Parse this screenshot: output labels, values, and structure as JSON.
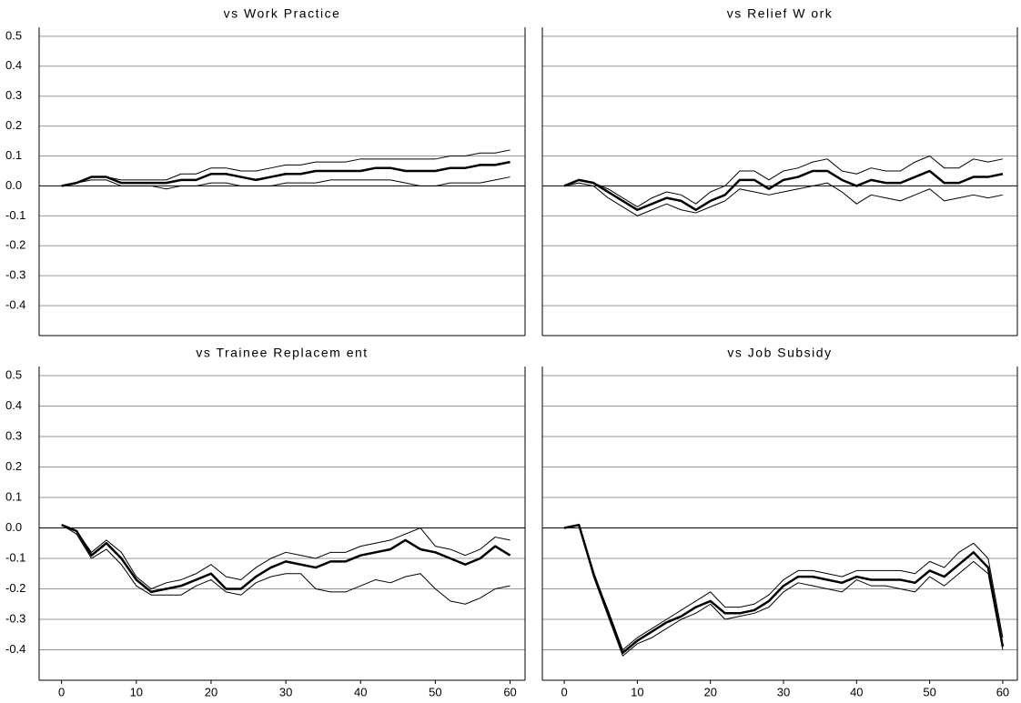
{
  "chart_data": [
    {
      "type": "line",
      "title": "vs Work Practice",
      "x": [
        0,
        2,
        4,
        6,
        8,
        10,
        12,
        14,
        16,
        18,
        20,
        22,
        24,
        26,
        28,
        30,
        32,
        34,
        36,
        38,
        40,
        42,
        44,
        46,
        48,
        50,
        52,
        54,
        56,
        58,
        60
      ],
      "series": [
        {
          "color": "#000000",
          "line_width": 1,
          "values": [
            0,
            0.01,
            0.03,
            0.03,
            0.02,
            0.02,
            0.02,
            0.02,
            0.04,
            0.04,
            0.06,
            0.06,
            0.05,
            0.05,
            0.06,
            0.07,
            0.07,
            0.08,
            0.08,
            0.08,
            0.09,
            0.09,
            0.09,
            0.09,
            0.09,
            0.09,
            0.1,
            0.1,
            0.11,
            0.11,
            0.12
          ]
        },
        {
          "color": "#000000",
          "line_width": 1,
          "values": [
            0,
            0.01,
            0.02,
            0.02,
            0,
            0,
            0,
            -0.01,
            0,
            0,
            0.01,
            0.01,
            0,
            0,
            0,
            0.01,
            0.01,
            0.01,
            0.02,
            0.02,
            0.02,
            0.02,
            0.02,
            0.01,
            0,
            0,
            0.01,
            0.01,
            0.01,
            0.02,
            0.03
          ]
        },
        {
          "color": "#000000",
          "line_width": 2.5,
          "values": [
            0,
            0.01,
            0.03,
            0.03,
            0.01,
            0.01,
            0.01,
            0.01,
            0.02,
            0.02,
            0.04,
            0.04,
            0.03,
            0.02,
            0.03,
            0.04,
            0.04,
            0.05,
            0.05,
            0.05,
            0.05,
            0.06,
            0.06,
            0.05,
            0.05,
            0.05,
            0.06,
            0.06,
            0.07,
            0.07,
            0.08
          ]
        }
      ],
      "xlim": [
        -3,
        62
      ],
      "ylim": [
        -0.5,
        0.53
      ],
      "yticks": [
        -0.4,
        -0.3,
        -0.2,
        -0.1,
        {
          "value": 0,
          "label": "0.0"
        },
        0.1,
        0.2,
        0.3,
        0.4,
        0.5
      ],
      "ytick_labels": true,
      "grid": true,
      "zero_line": true
    },
    {
      "type": "line",
      "title": "vs Relief W ork",
      "x": [
        0,
        2,
        4,
        6,
        8,
        10,
        12,
        14,
        16,
        18,
        20,
        22,
        24,
        26,
        28,
        30,
        32,
        34,
        36,
        38,
        40,
        42,
        44,
        46,
        48,
        50,
        52,
        54,
        56,
        58,
        60
      ],
      "series": [
        {
          "color": "#000000",
          "line_width": 1,
          "values": [
            0,
            0.02,
            0.01,
            -0.01,
            -0.04,
            -0.07,
            -0.04,
            -0.02,
            -0.03,
            -0.06,
            -0.02,
            0,
            0.05,
            0.05,
            0.02,
            0.05,
            0.06,
            0.08,
            0.09,
            0.05,
            0.04,
            0.06,
            0.05,
            0.05,
            0.08,
            0.1,
            0.06,
            0.06,
            0.09,
            0.08,
            0.09
          ]
        },
        {
          "color": "#000000",
          "line_width": 1,
          "values": [
            0,
            0.01,
            0,
            -0.04,
            -0.07,
            -0.1,
            -0.08,
            -0.06,
            -0.08,
            -0.09,
            -0.07,
            -0.05,
            -0.01,
            -0.02,
            -0.03,
            -0.02,
            -0.01,
            0,
            0.01,
            -0.02,
            -0.06,
            -0.03,
            -0.04,
            -0.05,
            -0.03,
            -0.01,
            -0.05,
            -0.04,
            -0.03,
            -0.04,
            -0.03
          ]
        },
        {
          "color": "#000000",
          "line_width": 2.5,
          "values": [
            0,
            0.02,
            0.01,
            -0.02,
            -0.05,
            -0.08,
            -0.06,
            -0.04,
            -0.05,
            -0.08,
            -0.05,
            -0.03,
            0.02,
            0.02,
            -0.01,
            0.02,
            0.03,
            0.05,
            0.05,
            0.02,
            0,
            0.02,
            0.01,
            0.01,
            0.03,
            0.05,
            0.01,
            0.01,
            0.03,
            0.03,
            0.04
          ]
        }
      ],
      "xlim": [
        -3,
        62
      ],
      "ylim": [
        -0.5,
        0.53
      ],
      "yticks": [
        -0.4,
        -0.3,
        -0.2,
        -0.1,
        0,
        0.1,
        0.2,
        0.3,
        0.4,
        0.5
      ],
      "ytick_labels": false,
      "grid": true,
      "zero_line": true
    },
    {
      "type": "line",
      "title": "vs Trainee Replacem ent",
      "x": [
        0,
        2,
        4,
        6,
        8,
        10,
        12,
        14,
        16,
        18,
        20,
        22,
        24,
        26,
        28,
        30,
        32,
        34,
        36,
        38,
        40,
        42,
        44,
        46,
        48,
        50,
        52,
        54,
        56,
        58,
        60
      ],
      "series": [
        {
          "color": "#000000",
          "line_width": 1,
          "values": [
            0.01,
            -0.01,
            -0.08,
            -0.04,
            -0.08,
            -0.16,
            -0.2,
            -0.18,
            -0.17,
            -0.15,
            -0.12,
            -0.16,
            -0.17,
            -0.13,
            -0.1,
            -0.08,
            -0.09,
            -0.1,
            -0.08,
            -0.08,
            -0.06,
            -0.05,
            -0.04,
            -0.02,
            0,
            -0.06,
            -0.07,
            -0.09,
            -0.07,
            -0.03,
            -0.04
          ]
        },
        {
          "color": "#000000",
          "line_width": 1,
          "values": [
            0.01,
            -0.02,
            -0.1,
            -0.07,
            -0.12,
            -0.19,
            -0.22,
            -0.22,
            -0.22,
            -0.19,
            -0.17,
            -0.21,
            -0.22,
            -0.18,
            -0.16,
            -0.15,
            -0.15,
            -0.2,
            -0.21,
            -0.21,
            -0.19,
            -0.17,
            -0.18,
            -0.16,
            -0.15,
            -0.2,
            -0.24,
            -0.25,
            -0.23,
            -0.2,
            -0.19
          ]
        },
        {
          "color": "#000000",
          "line_width": 2.5,
          "values": [
            0.01,
            -0.01,
            -0.09,
            -0.05,
            -0.1,
            -0.17,
            -0.21,
            -0.2,
            -0.19,
            -0.17,
            -0.15,
            -0.2,
            -0.2,
            -0.16,
            -0.13,
            -0.11,
            -0.12,
            -0.13,
            -0.11,
            -0.11,
            -0.09,
            -0.08,
            -0.07,
            -0.04,
            -0.07,
            -0.08,
            -0.1,
            -0.12,
            -0.1,
            -0.06,
            -0.09
          ]
        }
      ],
      "xlim": [
        -3,
        62
      ],
      "ylim": [
        -0.5,
        0.53
      ],
      "xticks": [
        0,
        10,
        20,
        30,
        40,
        50,
        60
      ],
      "yticks": [
        -0.4,
        -0.3,
        -0.2,
        -0.1,
        {
          "value": 0,
          "label": "0.0"
        },
        0.1,
        0.2,
        0.3,
        0.4,
        0.5
      ],
      "ytick_labels": true,
      "grid": true,
      "zero_line": true
    },
    {
      "type": "line",
      "title": "vs Job Subsidy",
      "x": [
        0,
        2,
        4,
        6,
        8,
        10,
        12,
        14,
        16,
        18,
        20,
        22,
        24,
        26,
        28,
        30,
        32,
        34,
        36,
        38,
        40,
        42,
        44,
        46,
        48,
        50,
        52,
        54,
        56,
        58,
        60
      ],
      "series": [
        {
          "color": "#000000",
          "line_width": 1,
          "values": [
            0,
            0.01,
            -0.15,
            -0.27,
            -0.4,
            -0.36,
            -0.33,
            -0.3,
            -0.27,
            -0.24,
            -0.21,
            -0.26,
            -0.26,
            -0.25,
            -0.22,
            -0.17,
            -0.14,
            -0.14,
            -0.15,
            -0.16,
            -0.14,
            -0.14,
            -0.14,
            -0.14,
            -0.15,
            -0.11,
            -0.13,
            -0.08,
            -0.05,
            -0.1,
            -0.36
          ]
        },
        {
          "color": "#000000",
          "line_width": 1,
          "values": [
            0,
            0.01,
            -0.16,
            -0.29,
            -0.42,
            -0.38,
            -0.36,
            -0.33,
            -0.3,
            -0.28,
            -0.25,
            -0.3,
            -0.29,
            -0.28,
            -0.26,
            -0.21,
            -0.18,
            -0.19,
            -0.2,
            -0.21,
            -0.17,
            -0.19,
            -0.19,
            -0.2,
            -0.21,
            -0.16,
            -0.19,
            -0.15,
            -0.11,
            -0.15,
            -0.4
          ]
        },
        {
          "color": "#000000",
          "line_width": 2.5,
          "values": [
            0,
            0.01,
            -0.15,
            -0.28,
            -0.41,
            -0.37,
            -0.34,
            -0.31,
            -0.29,
            -0.26,
            -0.24,
            -0.28,
            -0.28,
            -0.27,
            -0.24,
            -0.19,
            -0.16,
            -0.16,
            -0.17,
            -0.18,
            -0.16,
            -0.17,
            -0.17,
            -0.17,
            -0.18,
            -0.14,
            -0.16,
            -0.12,
            -0.08,
            -0.13,
            -0.39
          ]
        }
      ],
      "xlim": [
        -3,
        62
      ],
      "ylim": [
        -0.5,
        0.53
      ],
      "xticks": [
        0,
        10,
        20,
        30,
        40,
        50,
        60
      ],
      "yticks": [
        -0.4,
        -0.3,
        -0.2,
        -0.1,
        0,
        0.1,
        0.2,
        0.3,
        0.4,
        0.5
      ],
      "ytick_labels": false,
      "grid": true,
      "zero_line": true
    }
  ]
}
